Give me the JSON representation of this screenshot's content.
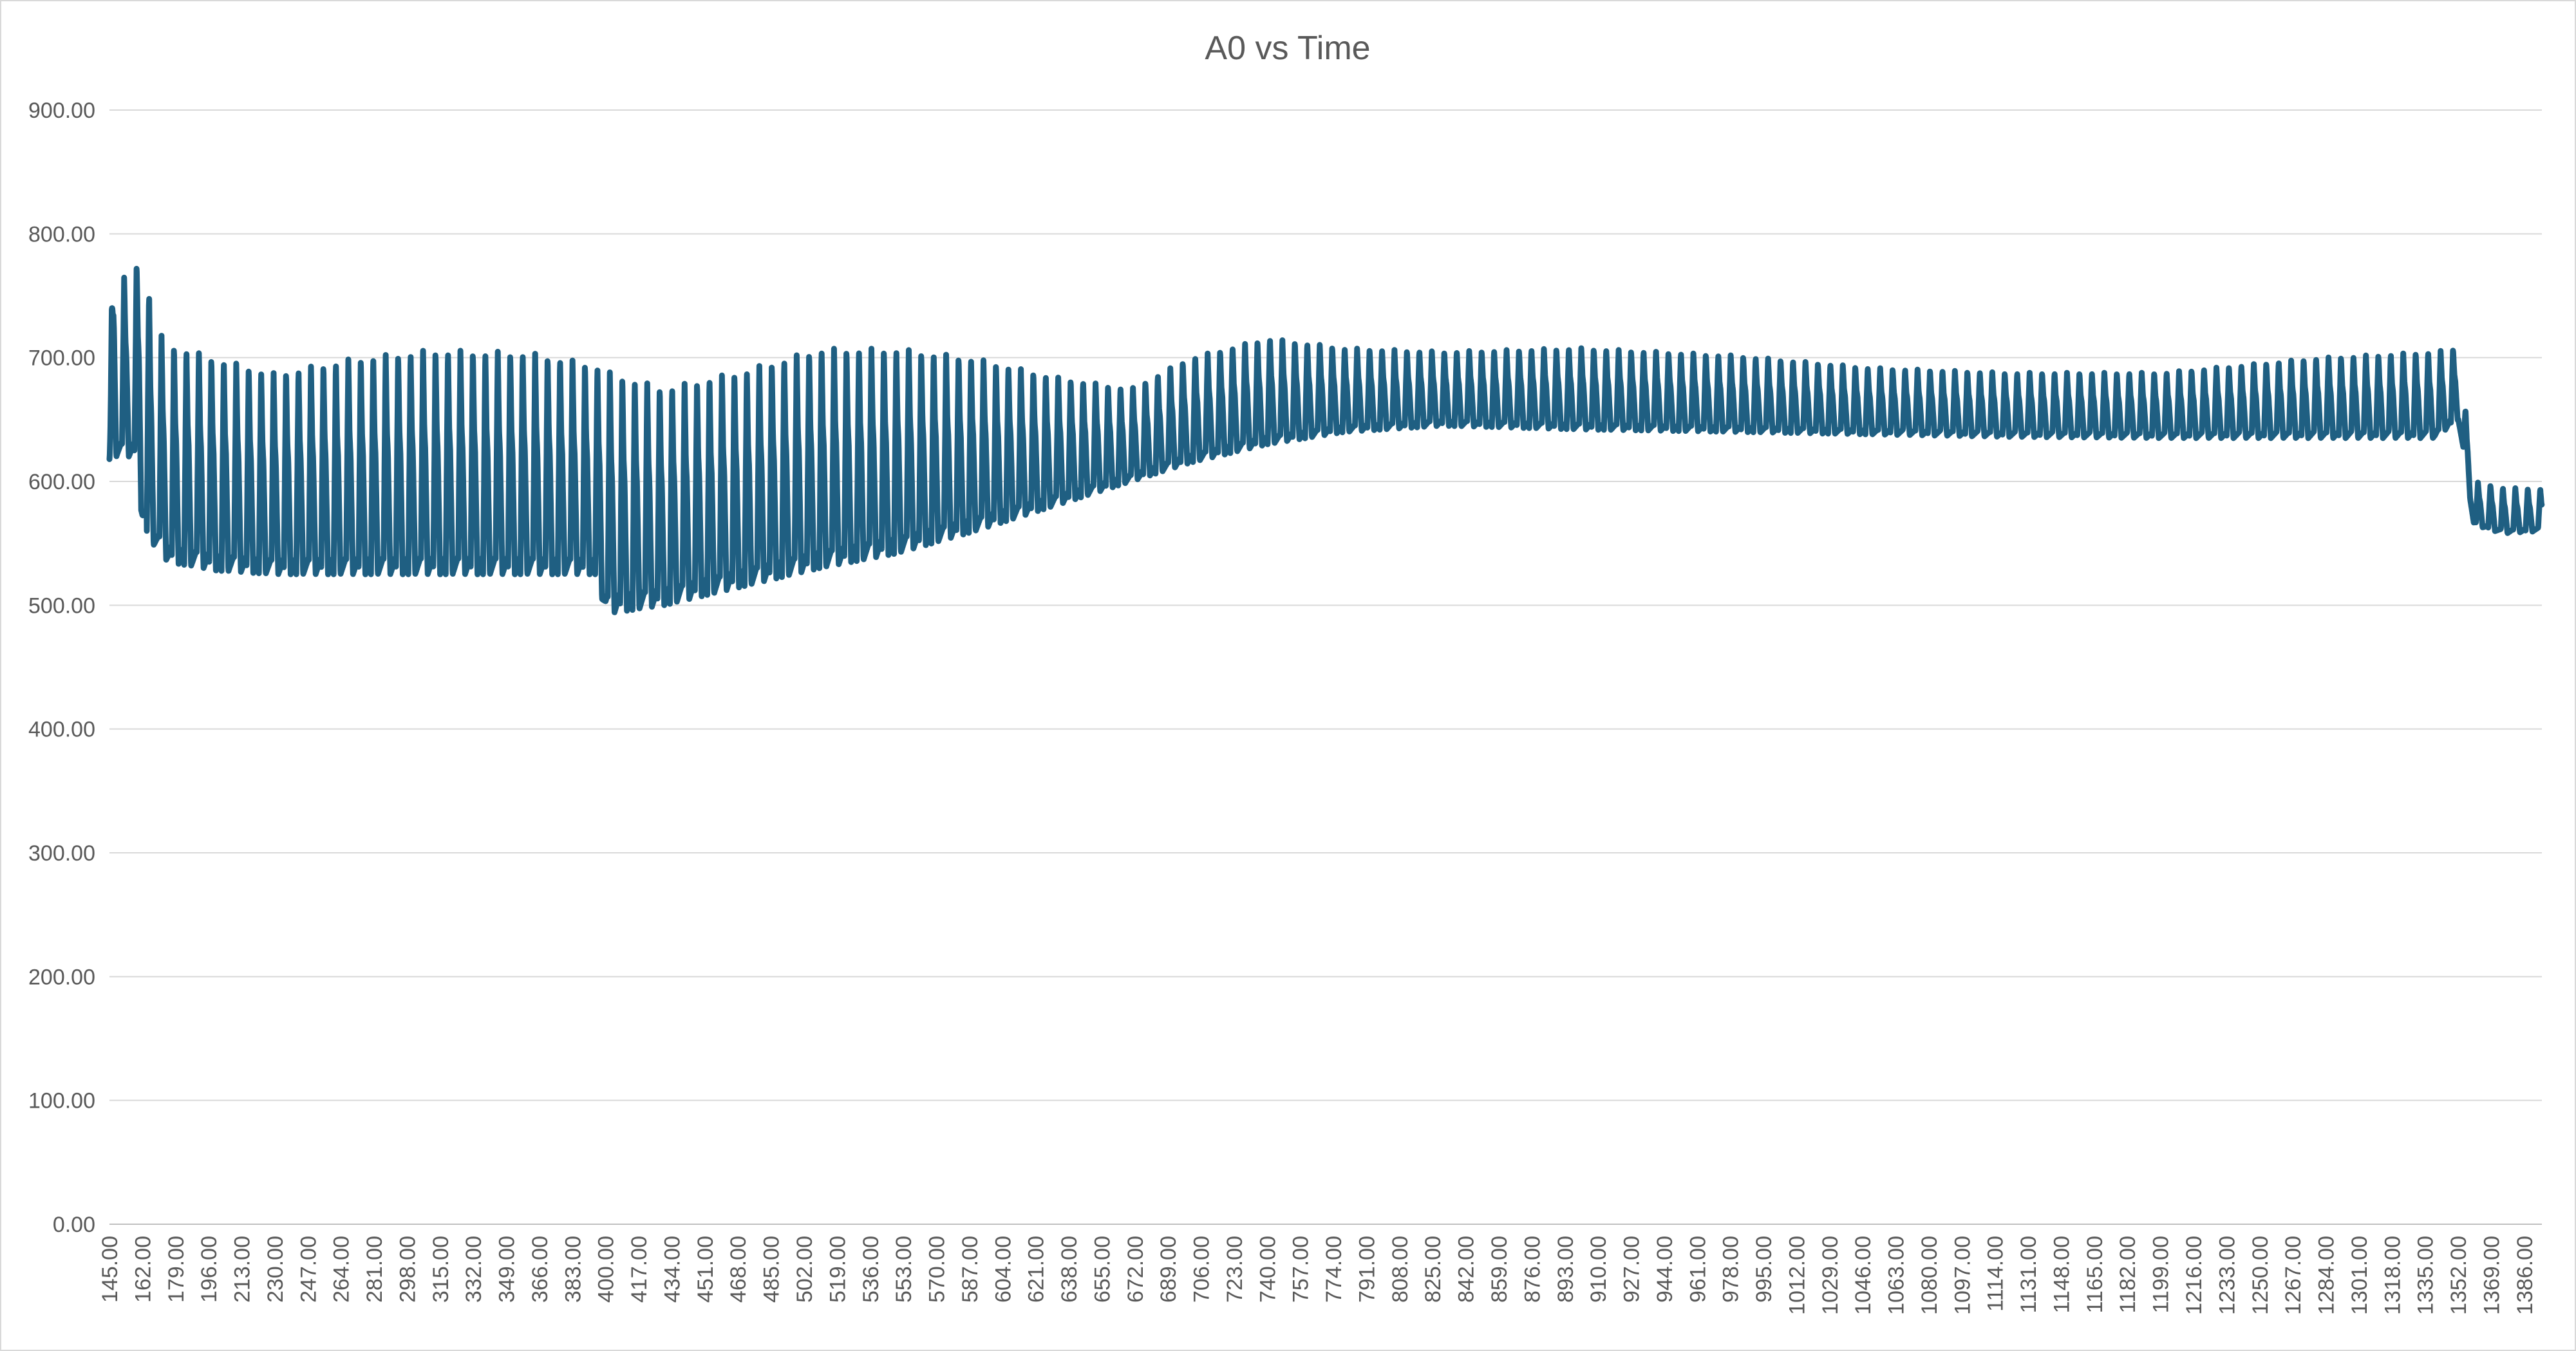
{
  "chart_data": {
    "type": "line",
    "title": "A0 vs Time",
    "xlabel": "",
    "ylabel": "",
    "ylim": [
      0,
      900
    ],
    "y_ticks": [
      "0.00",
      "100.00",
      "200.00",
      "300.00",
      "400.00",
      "500.00",
      "600.00",
      "700.00",
      "800.00",
      "900.00"
    ],
    "x_tick_labels": [
      "145.00",
      "162.00",
      "179.00",
      "196.00",
      "213.00",
      "230.00",
      "247.00",
      "264.00",
      "281.00",
      "298.00",
      "315.00",
      "332.00",
      "349.00",
      "366.00",
      "383.00",
      "400.00",
      "417.00",
      "434.00",
      "451.00",
      "468.00",
      "485.00",
      "502.00",
      "519.00",
      "536.00",
      "553.00",
      "570.00",
      "587.00",
      "604.00",
      "621.00",
      "638.00",
      "655.00",
      "672.00",
      "689.00",
      "706.00",
      "723.00",
      "740.00",
      "757.00",
      "774.00",
      "791.00",
      "808.00",
      "825.00",
      "842.00",
      "859.00",
      "876.00",
      "893.00",
      "910.00",
      "927.00",
      "944.00",
      "961.00",
      "978.00",
      "995.00",
      "1012.00",
      "1029.00",
      "1046.00",
      "1063.00",
      "1080.00",
      "1097.00",
      "1114.00",
      "1131.00",
      "1148.00",
      "1165.00",
      "1182.00",
      "1199.00",
      "1216.00",
      "1233.00",
      "1250.00",
      "1267.00",
      "1284.00",
      "1301.00",
      "1318.00",
      "1335.00",
      "1352.00",
      "1369.00",
      "1386.00"
    ],
    "grid": true,
    "legend": "none",
    "series": [
      {
        "color": "#1f5f82",
        "style": "oscillating pulse waveform",
        "x_start": 145,
        "x_end": 1395,
        "envelope": [
          {
            "x": 145,
            "max": 640,
            "min": 618
          },
          {
            "x": 147,
            "max": 810,
            "min": 620
          },
          {
            "x": 152,
            "max": 765,
            "min": 620
          },
          {
            "x": 158,
            "max": 768,
            "min": 620
          },
          {
            "x": 162,
            "max": 805,
            "min": 568
          },
          {
            "x": 167,
            "max": 728,
            "min": 550
          },
          {
            "x": 175,
            "max": 712,
            "min": 535
          },
          {
            "x": 200,
            "max": 700,
            "min": 528
          },
          {
            "x": 230,
            "max": 688,
            "min": 525
          },
          {
            "x": 270,
            "max": 700,
            "min": 525
          },
          {
            "x": 310,
            "max": 707,
            "min": 525
          },
          {
            "x": 360,
            "max": 705,
            "min": 525
          },
          {
            "x": 395,
            "max": 695,
            "min": 525
          },
          {
            "x": 400,
            "max": 690,
            "min": 493
          },
          {
            "x": 430,
            "max": 676,
            "min": 500
          },
          {
            "x": 470,
            "max": 690,
            "min": 515
          },
          {
            "x": 510,
            "max": 708,
            "min": 530
          },
          {
            "x": 550,
            "max": 708,
            "min": 542
          },
          {
            "x": 590,
            "max": 700,
            "min": 560
          },
          {
            "x": 630,
            "max": 685,
            "min": 580
          },
          {
            "x": 670,
            "max": 675,
            "min": 600
          },
          {
            "x": 700,
            "max": 700,
            "min": 615
          },
          {
            "x": 740,
            "max": 716,
            "min": 630
          },
          {
            "x": 780,
            "max": 708,
            "min": 640
          },
          {
            "x": 830,
            "max": 705,
            "min": 645
          },
          {
            "x": 900,
            "max": 708,
            "min": 642
          },
          {
            "x": 980,
            "max": 702,
            "min": 640
          },
          {
            "x": 1050,
            "max": 692,
            "min": 638
          },
          {
            "x": 1120,
            "max": 688,
            "min": 636
          },
          {
            "x": 1200,
            "max": 688,
            "min": 635
          },
          {
            "x": 1280,
            "max": 700,
            "min": 635
          },
          {
            "x": 1340,
            "max": 705,
            "min": 635
          },
          {
            "x": 1352,
            "max": 708,
            "min": 650
          },
          {
            "x": 1356,
            "max": 655,
            "min": 610
          },
          {
            "x": 1360,
            "max": 600,
            "min": 565
          },
          {
            "x": 1375,
            "max": 595,
            "min": 558
          },
          {
            "x": 1395,
            "max": 594,
            "min": 560
          }
        ],
        "period": 6.4
      }
    ]
  }
}
